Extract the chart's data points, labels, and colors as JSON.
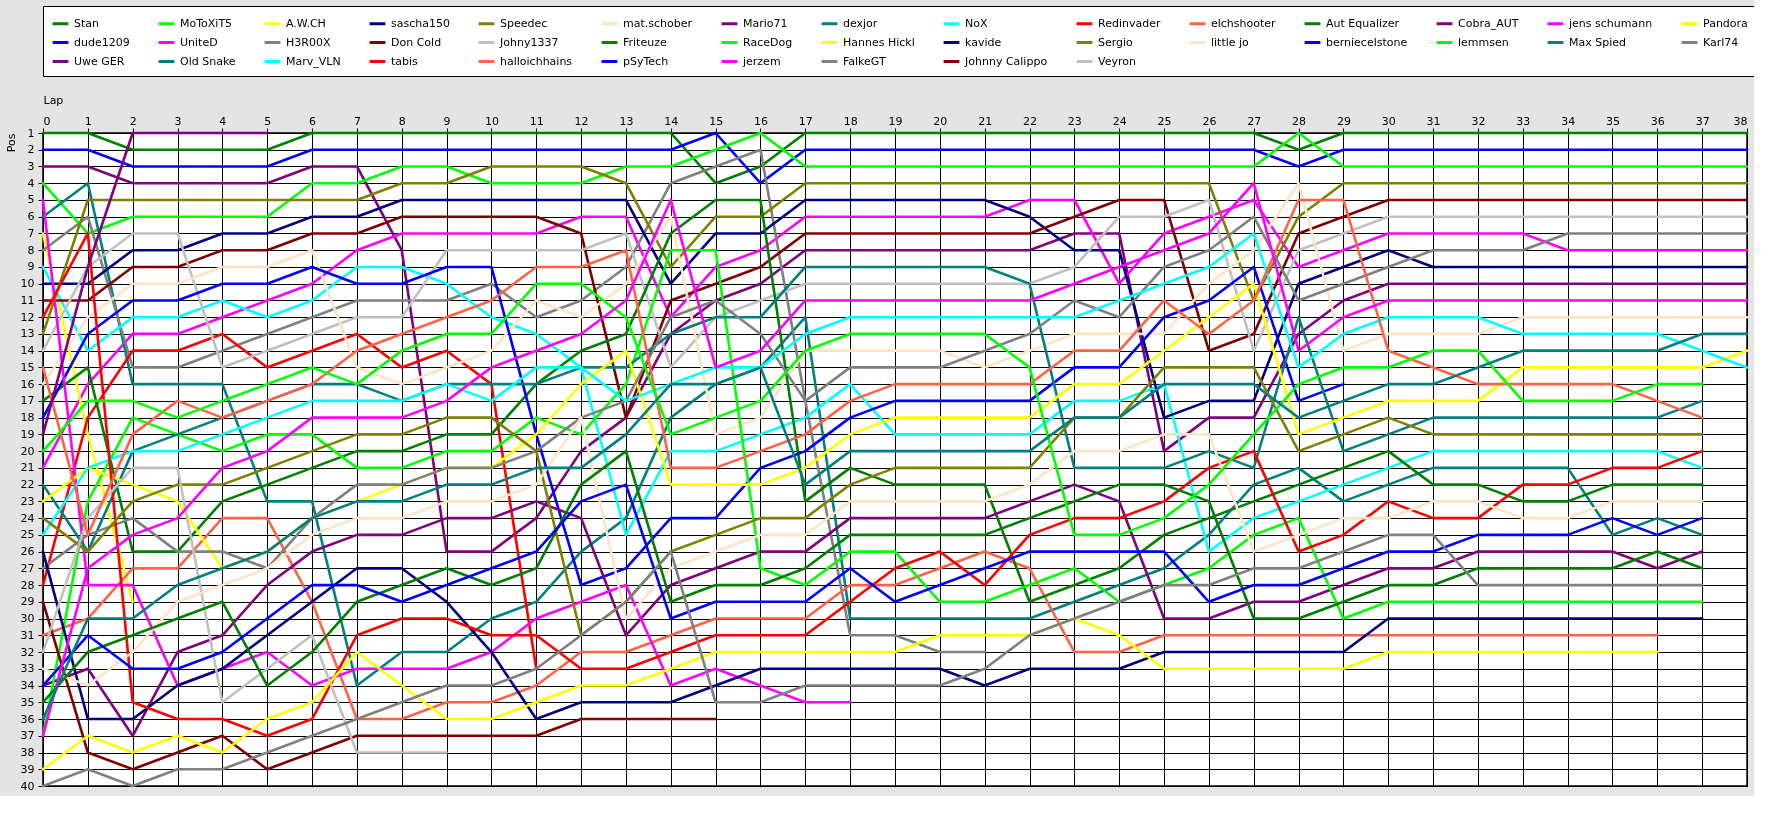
{
  "chart_data": {
    "type": "line",
    "xlabel": "Lap",
    "ylabel": "Pos",
    "x": [
      0,
      1,
      2,
      3,
      4,
      5,
      6,
      7,
      8,
      9,
      10,
      11,
      12,
      13,
      14,
      15,
      16,
      17,
      18,
      19,
      20,
      21,
      22,
      23,
      24,
      25,
      26,
      27,
      28,
      29,
      30,
      31,
      32,
      33,
      34,
      35,
      36,
      37,
      38
    ],
    "xlim": [
      0,
      38
    ],
    "xticks": [
      0,
      1,
      2,
      3,
      4,
      5,
      6,
      7,
      8,
      9,
      10,
      11,
      12,
      13,
      14,
      15,
      16,
      17,
      18,
      19,
      20,
      21,
      22,
      23,
      24,
      25,
      26,
      27,
      28,
      29,
      30,
      31,
      32,
      33,
      34,
      35,
      36,
      37,
      38
    ],
    "ylim": [
      40,
      1
    ],
    "yticks": [
      1,
      2,
      3,
      4,
      5,
      6,
      7,
      8,
      9,
      10,
      11,
      12,
      13,
      14,
      15,
      16,
      17,
      18,
      19,
      20,
      21,
      22,
      23,
      24,
      25,
      26,
      27,
      28,
      29,
      30,
      31,
      32,
      33,
      34,
      35,
      36,
      37,
      38,
      39,
      40
    ],
    "grid": true,
    "legend": "top",
    "marker": "none",
    "line_style": "solid",
    "series": [
      {
        "name": "Stan",
        "color": "#008000",
        "values": [
          1,
          1,
          2,
          2,
          2,
          2,
          1,
          1,
          1,
          1,
          1,
          1,
          1,
          1,
          1,
          4,
          3,
          1,
          1,
          1,
          1,
          1,
          1,
          1,
          1,
          1,
          1,
          1,
          2,
          1,
          1,
          1,
          1,
          1,
          1,
          1,
          1,
          1,
          1
        ]
      },
      {
        "name": "dude1209",
        "color": "#0000ff",
        "values": [
          2,
          2,
          3,
          3,
          3,
          3,
          2,
          2,
          2,
          2,
          2,
          2,
          2,
          2,
          2,
          1,
          4,
          2,
          2,
          2,
          2,
          2,
          2,
          2,
          2,
          2,
          2,
          2,
          3,
          2,
          2,
          2,
          2,
          2,
          2,
          2,
          2,
          2,
          2
        ]
      },
      {
        "name": "Uwe GER",
        "color": "#800080",
        "values": [
          3,
          3,
          4,
          4,
          4,
          4,
          3,
          3,
          8,
          26,
          26,
          24,
          20,
          18,
          13,
          11,
          10,
          8,
          8,
          8,
          8,
          8,
          8,
          7,
          7,
          20,
          18,
          18,
          13,
          11,
          10,
          10,
          10,
          10,
          10,
          10,
          10,
          10,
          10
        ]
      },
      {
        "name": "MoToXiT5",
        "color": "#00ff00",
        "values": [
          4,
          7,
          6,
          6,
          6,
          6,
          4,
          4,
          3,
          3,
          4,
          4,
          4,
          3,
          3,
          2,
          1,
          3,
          3,
          3,
          3,
          3,
          3,
          3,
          3,
          3,
          3,
          3,
          1,
          3,
          3,
          3,
          3,
          3,
          3,
          3,
          3,
          3,
          3
        ]
      },
      {
        "name": "UniteD",
        "color": "#ff00ff",
        "values": [
          21,
          16,
          13,
          13,
          12,
          11,
          10,
          8,
          7,
          7,
          7,
          7,
          6,
          6,
          12,
          9,
          8,
          6,
          6,
          6,
          6,
          6,
          5,
          5,
          10,
          7,
          6,
          5,
          9,
          8,
          7,
          7,
          7,
          7,
          8,
          8,
          8,
          8,
          8
        ]
      },
      {
        "name": "Old Snake",
        "color": "#008080",
        "values": [
          6,
          4,
          16,
          16,
          16,
          23,
          23,
          34,
          32,
          32,
          30,
          29,
          26,
          24,
          18,
          16,
          15,
          12,
          30,
          30,
          30,
          30,
          30,
          29,
          28,
          27,
          25,
          22,
          21,
          23,
          22,
          21,
          21,
          21,
          21,
          25,
          24,
          25,
          null
        ]
      },
      {
        "name": "A.W.CH",
        "color": "#ffff00",
        "values": [
          7,
          19,
          29,
          null,
          null,
          null,
          null,
          null,
          null,
          null,
          null,
          null,
          null,
          null,
          null,
          null,
          null,
          null,
          null,
          null,
          null,
          null,
          null,
          null,
          null,
          null,
          null,
          null,
          null,
          null,
          null,
          null,
          null,
          null,
          null,
          null,
          null,
          null,
          null
        ]
      },
      {
        "name": "H3R00X",
        "color": "#808080",
        "values": [
          8,
          6,
          15,
          15,
          14,
          13,
          12,
          11,
          11,
          11,
          10,
          12,
          11,
          9,
          4,
          3,
          2,
          17,
          31,
          31,
          32,
          32,
          null,
          null,
          null,
          null,
          null,
          null,
          null,
          null,
          null,
          null,
          null,
          null,
          null,
          null,
          null,
          null,
          null
        ]
      },
      {
        "name": "Marv_VLN",
        "color": "#00ffff",
        "values": [
          9,
          14,
          12,
          12,
          11,
          12,
          11,
          9,
          9,
          10,
          12,
          13,
          15,
          25,
          20,
          20,
          19,
          18,
          16,
          19,
          19,
          19,
          19,
          17,
          17,
          16,
          26,
          24,
          23,
          22,
          21,
          20,
          20,
          20,
          20,
          20,
          20,
          21,
          null
        ]
      },
      {
        "name": "sascha150",
        "color": "#000080",
        "values": [
          10,
          10,
          8,
          8,
          7,
          7,
          6,
          6,
          5,
          5,
          5,
          5,
          5,
          5,
          10,
          7,
          7,
          5,
          5,
          5,
          5,
          5,
          6,
          8,
          8,
          18,
          17,
          17,
          10,
          9,
          8,
          9,
          9,
          9,
          9,
          9,
          9,
          9,
          9
        ]
      },
      {
        "name": "Don Cold",
        "color": "#800000",
        "values": [
          11,
          11,
          9,
          9,
          8,
          8,
          7,
          7,
          6,
          6,
          6,
          6,
          7,
          18,
          11,
          10,
          9,
          7,
          7,
          7,
          7,
          7,
          7,
          6,
          5,
          5,
          14,
          13,
          7,
          6,
          5,
          5,
          5,
          5,
          5,
          5,
          5,
          5,
          5
        ]
      },
      {
        "name": "tabis",
        "color": "#ff0000",
        "values": [
          28,
          18,
          14,
          14,
          13,
          15,
          14,
          13,
          15,
          14,
          16,
          33,
          null,
          null,
          null,
          null,
          null,
          null,
          null,
          null,
          null,
          null,
          null,
          null,
          null,
          null,
          null,
          null,
          null,
          null,
          null,
          null,
          null,
          null,
          null,
          null,
          null,
          null,
          null
        ]
      },
      {
        "name": "Speedec",
        "color": "#808000",
        "values": [
          13,
          5,
          5,
          5,
          5,
          5,
          5,
          5,
          4,
          4,
          3,
          3,
          3,
          4,
          9,
          6,
          6,
          4,
          4,
          4,
          4,
          4,
          4,
          4,
          4,
          4,
          4,
          11,
          6,
          4,
          4,
          4,
          4,
          4,
          4,
          4,
          4,
          4,
          4
        ]
      },
      {
        "name": "Johny1337",
        "color": "#c0c0c0",
        "values": [
          14,
          9,
          7,
          7,
          15,
          14,
          13,
          12,
          12,
          8,
          8,
          8,
          8,
          7,
          15,
          12,
          11,
          10,
          10,
          10,
          10,
          10,
          10,
          9,
          6,
          6,
          5,
          14,
          8,
          7,
          6,
          6,
          6,
          6,
          6,
          6,
          6,
          6,
          6
        ]
      },
      {
        "name": "halloichhains",
        "color": "#ff6347",
        "values": [
          31,
          30,
          27,
          27,
          24,
          24,
          29,
          36,
          36,
          35,
          35,
          34,
          32,
          32,
          31,
          30,
          30,
          30,
          28,
          28,
          27,
          26,
          27,
          32,
          32,
          31,
          31,
          31,
          31,
          31,
          31,
          31,
          31,
          31,
          31,
          31,
          31,
          null,
          null
        ]
      },
      {
        "name": "mat.schober",
        "color": "#ffe4c4",
        "values": [
          16,
          12,
          10,
          10,
          9,
          9,
          8,
          15,
          16,
          15,
          14,
          11,
          12,
          10,
          6,
          19,
          18,
          14,
          14,
          14,
          14,
          15,
          14,
          13,
          13,
          13,
          10,
          8,
          4,
          14,
          13,
          13,
          13,
          12,
          12,
          12,
          12,
          12,
          12
        ]
      },
      {
        "name": "Friteuze",
        "color": "#008000",
        "values": [
          17,
          15,
          26,
          26,
          23,
          22,
          21,
          20,
          20,
          19,
          19,
          16,
          14,
          13,
          7,
          5,
          5,
          23,
          21,
          22,
          22,
          22,
          29,
          28,
          27,
          25,
          24,
          23,
          22,
          21,
          20,
          22,
          22,
          23,
          23,
          22,
          22,
          22,
          null
        ]
      },
      {
        "name": "pSyTech",
        "color": "#0000ff",
        "values": [
          18,
          13,
          11,
          11,
          10,
          10,
          9,
          10,
          10,
          9,
          9,
          19,
          28,
          27,
          24,
          24,
          21,
          20,
          18,
          17,
          17,
          17,
          17,
          15,
          15,
          12,
          11,
          9,
          17,
          16,
          null,
          null,
          null,
          null,
          null,
          null,
          null,
          null,
          null
        ]
      },
      {
        "name": "Mario71",
        "color": "#800080",
        "values": [
          34,
          33,
          37,
          32,
          31,
          28,
          26,
          25,
          25,
          24,
          24,
          23,
          24,
          31,
          28,
          27,
          26,
          26,
          24,
          24,
          24,
          24,
          23,
          22,
          23,
          30,
          30,
          29,
          29,
          28,
          27,
          27,
          26,
          26,
          26,
          26,
          27,
          26,
          null
        ]
      },
      {
        "name": "RaceDog",
        "color": "#00ff00",
        "values": [
          37,
          23,
          18,
          19,
          20,
          19,
          19,
          21,
          21,
          20,
          20,
          18,
          19,
          16,
          8,
          8,
          27,
          28,
          26,
          26,
          29,
          29,
          28,
          27,
          29,
          28,
          27,
          25,
          24,
          30,
          29,
          29,
          29,
          29,
          29,
          29,
          29,
          29,
          null
        ]
      },
      {
        "name": "jerzem",
        "color": "#ff00ff",
        "values": [
          5,
          28,
          28,
          34,
          33,
          32,
          34,
          33,
          33,
          33,
          32,
          30,
          29,
          28,
          34,
          33,
          34,
          35,
          35,
          null,
          null,
          null,
          null,
          null,
          null,
          null,
          null,
          null,
          null,
          null,
          null,
          null,
          null,
          null,
          null,
          null,
          null,
          null,
          null
        ]
      },
      {
        "name": "dexjor",
        "color": "#008080",
        "values": [
          22,
          26,
          20,
          19,
          18,
          17,
          16,
          16,
          17,
          16,
          16,
          16,
          15,
          15,
          13,
          12,
          12,
          9,
          9,
          9,
          9,
          9,
          10,
          21,
          21,
          21,
          20,
          21,
          12,
          20,
          19,
          18,
          18,
          18,
          18,
          18,
          18,
          17,
          null
        ]
      },
      {
        "name": "Hannes Hickl",
        "color": "#ffff00",
        "values": [
          23,
          21,
          22,
          23,
          27,
          26,
          24,
          23,
          22,
          21,
          21,
          19,
          16,
          14,
          22,
          22,
          22,
          21,
          19,
          18,
          18,
          18,
          18,
          16,
          16,
          14,
          12,
          10,
          19,
          18,
          17,
          17,
          17,
          15,
          15,
          15,
          15,
          15,
          14
        ]
      },
      {
        "name": "FalkeGT",
        "color": "#808080",
        "values": [
          27,
          25,
          24,
          26,
          26,
          27,
          24,
          22,
          22,
          21,
          21,
          20,
          18,
          17,
          12,
          11,
          13,
          17,
          15,
          15,
          15,
          14,
          13,
          11,
          12,
          9,
          8,
          6,
          11,
          10,
          9,
          8,
          8,
          8,
          7,
          7,
          7,
          7,
          7
        ]
      },
      {
        "name": "NoX",
        "color": "#00ffff",
        "values": [
          25,
          21,
          20,
          20,
          19,
          18,
          17,
          17,
          17,
          16,
          17,
          15,
          15,
          17,
          16,
          15,
          15,
          13,
          12,
          12,
          12,
          12,
          12,
          12,
          11,
          10,
          9,
          7,
          15,
          13,
          12,
          12,
          12,
          13,
          13,
          13,
          13,
          14,
          15
        ]
      },
      {
        "name": "kavide",
        "color": "#000080",
        "values": [
          26,
          36,
          36,
          34,
          33,
          31,
          29,
          27,
          27,
          29,
          32,
          36,
          35,
          35,
          35,
          34,
          33,
          33,
          33,
          33,
          33,
          34,
          33,
          33,
          33,
          32,
          32,
          32,
          32,
          32,
          30,
          30,
          30,
          30,
          30,
          30,
          30,
          30,
          null
        ]
      },
      {
        "name": "Johnny Calippo",
        "color": "#800000",
        "values": [
          29,
          38,
          39,
          38,
          37,
          39,
          38,
          37,
          37,
          37,
          37,
          37,
          36,
          36,
          36,
          36,
          null,
          null,
          null,
          null,
          null,
          null,
          null,
          null,
          null,
          null,
          null,
          null,
          null,
          null,
          null,
          null,
          null,
          null,
          null,
          null,
          null,
          null,
          null
        ]
      },
      {
        "name": "Redinvader",
        "color": "#ff0000",
        "values": [
          12,
          7,
          35,
          36,
          36,
          37,
          36,
          31,
          30,
          30,
          31,
          31,
          33,
          33,
          32,
          31,
          31,
          31,
          29,
          27,
          26,
          28,
          25,
          24,
          24,
          23,
          21,
          20,
          26,
          25,
          23,
          24,
          24,
          22,
          22,
          21,
          21,
          20,
          null
        ]
      },
      {
        "name": "Sergio",
        "color": "#808000",
        "values": [
          24,
          26,
          23,
          22,
          22,
          21,
          20,
          19,
          19,
          18,
          18,
          20,
          31,
          29,
          26,
          25,
          24,
          24,
          22,
          21,
          21,
          21,
          21,
          18,
          18,
          15,
          15,
          15,
          20,
          19,
          18,
          19,
          19,
          19,
          19,
          19,
          19,
          19,
          null
        ]
      },
      {
        "name": "Veyron",
        "color": "#c0c0c0",
        "values": [
          32,
          24,
          21,
          21,
          35,
          33,
          31,
          38,
          38,
          38,
          null,
          null,
          null,
          null,
          null,
          null,
          null,
          null,
          null,
          null,
          null,
          null,
          null,
          null,
          null,
          null,
          null,
          null,
          null,
          null,
          null,
          null,
          null,
          null,
          null,
          null,
          null,
          null,
          null
        ]
      },
      {
        "name": "elchshooter",
        "color": "#ff6347",
        "values": [
          15,
          25,
          19,
          17,
          18,
          17,
          16,
          14,
          13,
          12,
          11,
          9,
          9,
          8,
          21,
          21,
          20,
          19,
          17,
          16,
          16,
          16,
          16,
          14,
          14,
          11,
          13,
          11,
          5,
          5,
          14,
          15,
          16,
          16,
          16,
          16,
          17,
          18,
          null
        ]
      },
      {
        "name": "little jo",
        "color": "#ffe4c4",
        "values": [
          33,
          34,
          32,
          29,
          28,
          27,
          25,
          24,
          24,
          23,
          23,
          22,
          18,
          30,
          27,
          26,
          25,
          25,
          23,
          23,
          23,
          23,
          22,
          20,
          20,
          19,
          19,
          26,
          25,
          24,
          24,
          23,
          23,
          24,
          24,
          23,
          23,
          23,
          null
        ]
      },
      {
        "name": "Aut Equalizer",
        "color": "#008000",
        "values": [
          35,
          32,
          31,
          30,
          29,
          34,
          32,
          29,
          28,
          27,
          28,
          27,
          22,
          20,
          29,
          28,
          28,
          27,
          25,
          25,
          25,
          25,
          24,
          23,
          22,
          22,
          23,
          30,
          30,
          29,
          28,
          28,
          27,
          27,
          27,
          27,
          26,
          27,
          null
        ]
      },
      {
        "name": "berniecelstone",
        "color": "#0000ff",
        "values": [
          34,
          31,
          33,
          33,
          32,
          30,
          28,
          28,
          29,
          28,
          27,
          26,
          23,
          22,
          30,
          29,
          29,
          29,
          27,
          29,
          28,
          27,
          26,
          26,
          26,
          26,
          29,
          28,
          28,
          27,
          26,
          26,
          25,
          25,
          25,
          24,
          25,
          24,
          null
        ]
      },
      {
        "name": "Cobra_AUT",
        "color": "#800080",
        "values": [
          19,
          9,
          1,
          1,
          1,
          1,
          null,
          null,
          null,
          null,
          null,
          null,
          null,
          null,
          null,
          null,
          null,
          null,
          null,
          null,
          null,
          null,
          null,
          null,
          null,
          null,
          null,
          null,
          null,
          null,
          null,
          null,
          null,
          null,
          null,
          null,
          null,
          null,
          null
        ]
      },
      {
        "name": "lemmsen",
        "color": "#00ff00",
        "values": [
          20,
          17,
          17,
          18,
          17,
          16,
          15,
          16,
          14,
          13,
          13,
          10,
          10,
          12,
          19,
          18,
          17,
          14,
          13,
          13,
          13,
          13,
          15,
          25,
          25,
          24,
          22,
          19,
          16,
          15,
          15,
          14,
          14,
          17,
          17,
          17,
          16,
          16,
          null
        ]
      },
      {
        "name": "jens schumann",
        "color": "#ff00ff",
        "values": [
          37,
          27,
          25,
          24,
          21,
          20,
          18,
          18,
          18,
          17,
          15,
          14,
          13,
          11,
          5,
          15,
          14,
          11,
          11,
          11,
          11,
          11,
          11,
          10,
          9,
          8,
          7,
          4,
          14,
          12,
          11,
          11,
          11,
          11,
          11,
          11,
          11,
          11,
          11
        ]
      },
      {
        "name": "Max Spied",
        "color": "#008080",
        "values": [
          36,
          30,
          30,
          28,
          27,
          26,
          24,
          23,
          23,
          22,
          22,
          21,
          21,
          19,
          16,
          16,
          15,
          22,
          20,
          20,
          20,
          20,
          20,
          18,
          18,
          16,
          16,
          16,
          18,
          17,
          16,
          16,
          15,
          14,
          14,
          14,
          14,
          13,
          13
        ]
      },
      {
        "name": "Pandora",
        "color": "#ffff00",
        "values": [
          39,
          37,
          38,
          37,
          38,
          36,
          35,
          32,
          34,
          36,
          36,
          35,
          34,
          34,
          33,
          32,
          32,
          32,
          32,
          32,
          31,
          31,
          31,
          30,
          31,
          33,
          33,
          33,
          33,
          33,
          32,
          32,
          32,
          32,
          32,
          32,
          32,
          null,
          null
        ]
      },
      {
        "name": "Karl74",
        "color": "#808080",
        "values": [
          40,
          39,
          40,
          39,
          39,
          38,
          37,
          36,
          35,
          34,
          34,
          33,
          31,
          29,
          26,
          35,
          35,
          34,
          34,
          34,
          34,
          33,
          31,
          30,
          29,
          28,
          28,
          27,
          27,
          26,
          25,
          25,
          28,
          28,
          28,
          28,
          28,
          28,
          null
        ]
      }
    ]
  }
}
